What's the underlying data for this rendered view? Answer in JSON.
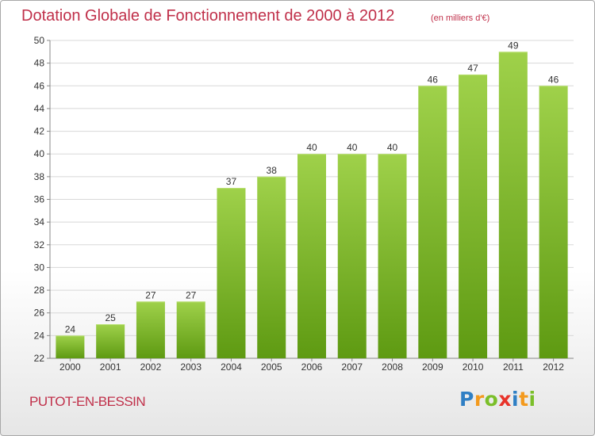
{
  "header": {
    "title": "Dotation Globale de Fonctionnement de 2000 à 2012",
    "unit": "(en milliers d'€)"
  },
  "commune": "PUTOT-EN-BESSIN",
  "logo": {
    "text": "Proxiti",
    "colors": [
      "#2f7fc4",
      "#f39a1e",
      "#7bbf2a",
      "#e8332a",
      "#2f7fc4",
      "#f39a1e",
      "#7bbf2a"
    ]
  },
  "colors": {
    "bar_top": "#9fd14a",
    "bar_bottom": "#5e9a12",
    "title": "#c0304a",
    "grid": "#d8d8d8"
  },
  "chart_data": {
    "type": "bar",
    "title": "Dotation Globale de Fonctionnement de 2000 à 2012",
    "subtitle": "(en milliers d'€)",
    "categories": [
      "2000",
      "2001",
      "2002",
      "2003",
      "2004",
      "2005",
      "2006",
      "2007",
      "2008",
      "2009",
      "2010",
      "2011",
      "2012"
    ],
    "values": [
      24,
      25,
      27,
      27,
      37,
      38,
      40,
      40,
      40,
      46,
      47,
      49,
      46
    ],
    "ylim": [
      22,
      50
    ],
    "yticks": [
      22,
      24,
      26,
      28,
      30,
      32,
      34,
      36,
      38,
      40,
      42,
      44,
      46,
      48,
      50
    ],
    "grid": true,
    "data_labels": true
  }
}
